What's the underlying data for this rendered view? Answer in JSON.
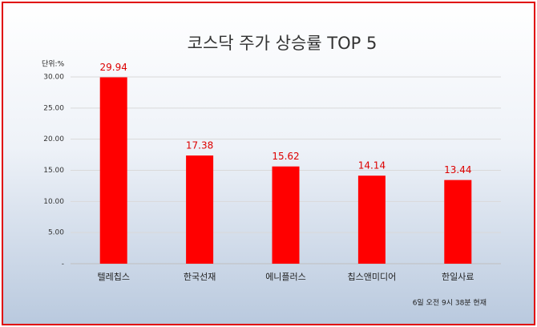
{
  "chart_data": {
    "type": "bar",
    "title": "코스닥 주가 상승률 TOP 5",
    "unit_label": "단위:%",
    "categories": [
      "텔레칩스",
      "한국선재",
      "에니플러스",
      "칩스앤미디어",
      "한일사료"
    ],
    "values": [
      29.94,
      17.38,
      15.62,
      14.14,
      13.44
    ],
    "color": "#ff0000",
    "ylim": [
      0,
      30
    ],
    "yticks": [
      {
        "value": 0,
        "label": "-"
      },
      {
        "value": 5,
        "label": "5.00"
      },
      {
        "value": 10,
        "label": "10.00"
      },
      {
        "value": 15,
        "label": "15.00"
      },
      {
        "value": 20,
        "label": "20.00"
      },
      {
        "value": 25,
        "label": "25.00"
      },
      {
        "value": 30,
        "label": "30.00"
      }
    ],
    "grid": true,
    "note": "6일 오전 9시 38분 현재"
  }
}
